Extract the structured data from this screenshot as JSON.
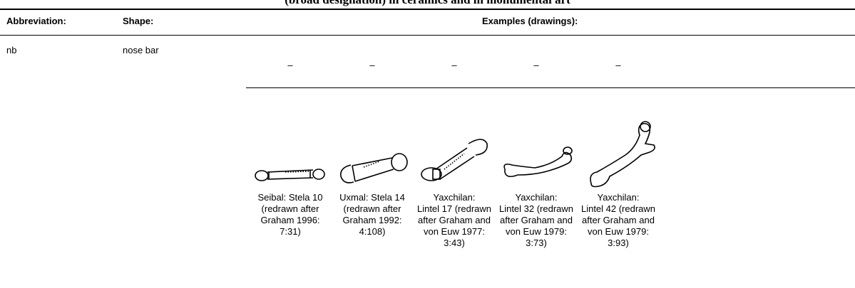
{
  "header": {
    "title": "(broad designation) in ceramics and in monumental art"
  },
  "table": {
    "columns": [
      "Abbreviation:",
      "Shape:",
      "Examples (drawings):"
    ],
    "rows": [
      {
        "abbreviation": "nb",
        "shape": "nose bar",
        "placeholders": [
          "–",
          "–",
          "–",
          "–",
          "–"
        ],
        "examples": [
          {
            "caption": [
              "Seibal: Stela 10",
              "(redrawn after",
              "Graham 1996:",
              "7:31)"
            ]
          },
          {
            "caption": [
              "Uxmal: Stela 14",
              "(redrawn after",
              "Graham 1992:",
              "4:108)"
            ]
          },
          {
            "caption": [
              "Yaxchilan:",
              "Lintel 17 (redrawn",
              "after Graham and",
              "von Euw 1977:",
              "3:43)"
            ]
          },
          {
            "caption": [
              "Yaxchilan:",
              "Lintel 32 (redrawn",
              "after Graham and",
              "von Euw 1979:",
              "3:73)"
            ]
          },
          {
            "caption": [
              "Yaxchilan:",
              "Lintel 42 (redrawn",
              "after Graham and",
              "von Euw 1979:",
              "3:93)"
            ]
          }
        ]
      }
    ]
  }
}
